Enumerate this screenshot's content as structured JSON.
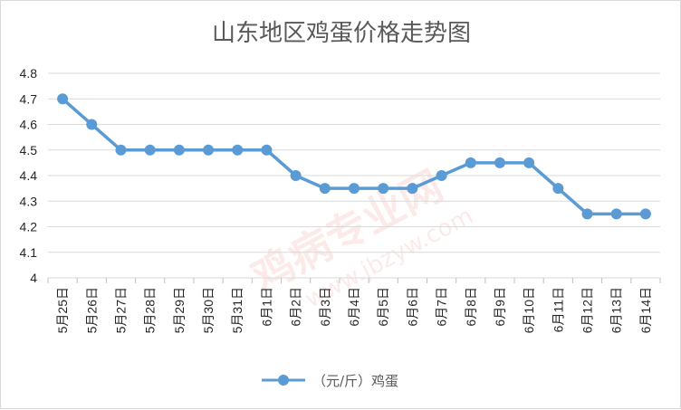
{
  "chart_data": {
    "type": "line",
    "title": "山东地区鸡蛋价格走势图",
    "categories": [
      "5月25日",
      "5月26日",
      "5月27日",
      "5月28日",
      "5月29日",
      "5月30日",
      "5月31日",
      "6月1日",
      "6月2日",
      "6月3日",
      "6月4日",
      "6月5日",
      "6月6日",
      "6月7日",
      "6月8日",
      "6月9日",
      "6月10日",
      "6月11日",
      "6月12日",
      "6月13日",
      "6月14日"
    ],
    "series": [
      {
        "name": "（元/斤）鸡蛋",
        "values": [
          4.7,
          4.6,
          4.5,
          4.5,
          4.5,
          4.5,
          4.5,
          4.5,
          4.4,
          4.35,
          4.35,
          4.35,
          4.35,
          4.4,
          4.45,
          4.45,
          4.45,
          4.35,
          4.25,
          4.25,
          4.25
        ],
        "color": "#5b9bd5"
      }
    ],
    "ylim": [
      4,
      4.8
    ],
    "yticks": [
      "4",
      "4.1",
      "4.2",
      "4.3",
      "4.4",
      "4.5",
      "4.6",
      "4.7",
      "4.8"
    ],
    "grid": true,
    "legend": "bottom"
  },
  "watermark": "鸡病专业网 www.jbzyw.com"
}
